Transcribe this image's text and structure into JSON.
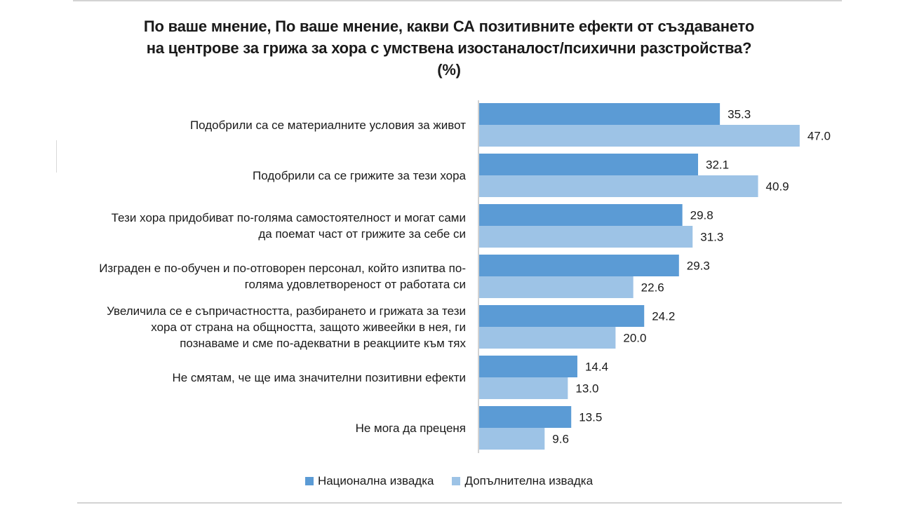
{
  "title": "По ваше мнение, По ваше мнение, какви СА позитивните ефекти от създаването на центрове за грижа за хора с умствена изостаналост/психични разстройства? (%)",
  "legend": {
    "national": "Национална извадка",
    "additional": "Допълнителна извадка"
  },
  "colors": {
    "national": "#5b9bd5",
    "additional": "#9dc3e6",
    "axis": "#a6a6a6"
  },
  "chart_data": {
    "type": "bar",
    "orientation": "horizontal",
    "title": "По ваше мнение, По ваше мнение, какви СА позитивните ефекти от създаването на центрове за грижа за хора с умствена изостаналост/психични разстройства? (%)",
    "categories": [
      "Подобрили са се материалните условия за живот",
      "Подобрили са се грижите за тези хора",
      "Тези хора придобиват по-голяма самостоятелност и могат сами да поемат част от грижите за себе си",
      "Изграден е по-обучен и по-отговорен персонал, който изпитва по-голяма удовлетвореност от работата си",
      "Увеличила се е съпричастността, разбирането и грижата за тези хора от страна на общността, защото живеейки в нея, ги познаваме и сме по-адекватни в реакциите към тях",
      "Не смятам, че ще има значителни позитивни ефекти",
      "Не мога да преценя"
    ],
    "category_lines": [
      [
        "Подобрили са се материалните условия за живот"
      ],
      [
        "Подобрили са се грижите за тези хора"
      ],
      [
        "Тези хора придобиват по-голяма самостоятелност и могат сами",
        "да поемат част от грижите за себе си"
      ],
      [
        "Изграден е по-обучен и по-отговорен персонал, който изпитва по-",
        "голяма удовлетвореност от работата си"
      ],
      [
        "Увеличила се е съпричастността, разбирането и грижата за тези",
        "хора от страна на общността, защото живеейки в нея, ги",
        "познаваме и сме по-адекватни в реакциите към тях"
      ],
      [
        "Не смятам, че ще има значителни позитивни ефекти"
      ],
      [
        "Не мога да преценя"
      ]
    ],
    "series": [
      {
        "name": "Национална извадка",
        "values": [
          35.3,
          32.1,
          29.8,
          29.3,
          24.2,
          14.4,
          13.5
        ]
      },
      {
        "name": "Допълнителна извадка",
        "values": [
          47.0,
          40.9,
          31.3,
          22.6,
          20.0,
          13.0,
          9.6
        ]
      }
    ],
    "xlim": [
      0,
      50
    ],
    "grid": false,
    "legend_position": "bottom"
  }
}
